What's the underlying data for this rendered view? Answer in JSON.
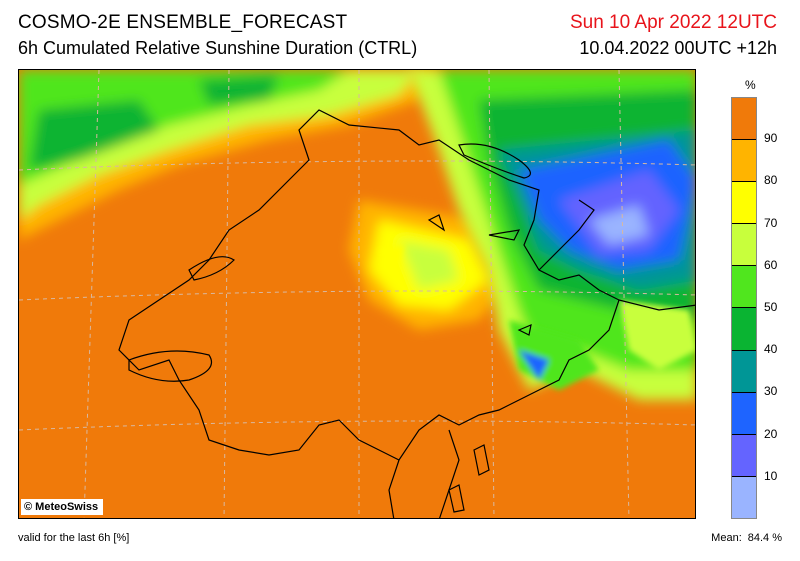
{
  "header": {
    "title": "COSMO-2E ENSEMBLE_FORECAST",
    "subtitle": "6h Cumulated Relative Sunshine Duration (CTRL)",
    "valid_time": "Sun 10 Apr 2022 12UTC",
    "run_time": "10.04.2022 00UTC +12h"
  },
  "map": {
    "copyright": "© MeteoSwiss"
  },
  "colorbar": {
    "unit": "%",
    "ticks": [
      "90",
      "80",
      "70",
      "60",
      "50",
      "40",
      "30",
      "20",
      "10"
    ],
    "colors": [
      "#f07a0a",
      "#ffb400",
      "#ffff00",
      "#c8ff3c",
      "#50e61e",
      "#0ab432",
      "#009696",
      "#1e64ff",
      "#6464ff",
      "#9ab4ff"
    ]
  },
  "footer": {
    "valid_note": "valid for the last 6h [%]",
    "mean_label": "Mean:",
    "mean_value": "84.4 %"
  }
}
